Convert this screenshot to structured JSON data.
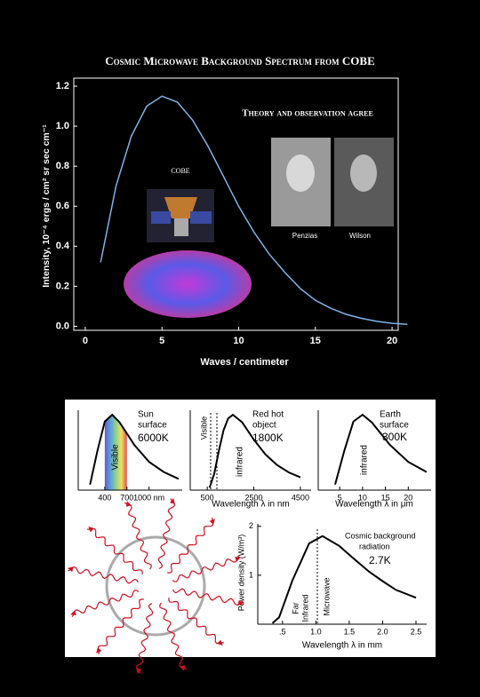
{
  "chart_data": [
    {
      "type": "line",
      "title": "Cosmic Microwave Background Spectrum from COBE",
      "subtitle": "Theory and observation agree",
      "y_label": "Intensity, 10⁻⁴ ergs / cm² sr sec cm⁻¹",
      "x_label": "Waves / centimeter",
      "annotations": [
        "COBE",
        "Penzias",
        "Wilson"
      ],
      "x": [
        1,
        2,
        3,
        4,
        5,
        6,
        7,
        8,
        9,
        10,
        11,
        12,
        13,
        14,
        15,
        16,
        17,
        18,
        19,
        20,
        21
      ],
      "values": [
        0.32,
        0.7,
        0.95,
        1.1,
        1.15,
        1.12,
        1.03,
        0.9,
        0.75,
        0.6,
        0.47,
        0.36,
        0.27,
        0.19,
        0.13,
        0.09,
        0.06,
        0.04,
        0.025,
        0.015,
        0.01
      ],
      "color": "#7fb2e5",
      "xlim": [
        -0.75,
        20.4
      ],
      "ylim": [
        -0.02,
        1.24
      ],
      "xticks": [
        0,
        5,
        10,
        15,
        20
      ],
      "yticks": [
        {
          "value": 0,
          "label": "0.0"
        },
        0.2,
        0.4,
        0.6,
        0.8,
        {
          "value": 1,
          "label": "1.0"
        },
        1.2
      ]
    },
    {
      "type": "line",
      "annotations": [
        "Sun",
        "surface",
        "6000K",
        "Visible"
      ],
      "x": [
        200,
        300,
        400,
        500,
        600,
        700,
        800,
        1000,
        1200,
        1400
      ],
      "values": [
        0.073,
        0.52,
        0.91,
        1.0,
        0.9,
        0.75,
        0.6,
        0.375,
        0.24,
        0.15
      ],
      "color": "#000000",
      "xlim": [
        40,
        1450
      ],
      "ylim": [
        0,
        1.06
      ],
      "xticks": [
        400,
        700,
        {
          "value": 1000,
          "label": "1000 nm"
        }
      ]
    },
    {
      "type": "line",
      "annotations": [
        "Red hot",
        "object",
        "1800K",
        "Visible",
        "infrared"
      ],
      "x_label": "Wavelength λ in nm",
      "x": [
        600,
        800,
        1000,
        1200,
        1400,
        1600,
        2000,
        2500,
        3000,
        3500,
        4000,
        4500
      ],
      "values": [
        0.032,
        0.215,
        0.52,
        0.795,
        0.951,
        1.0,
        0.9,
        0.671,
        0.474,
        0.333,
        0.236,
        0.17
      ],
      "color": "#000000",
      "xlim": [
        -230,
        4960
      ],
      "ylim": [
        0,
        1.06
      ],
      "xticks": [
        500,
        2500,
        4500
      ]
    },
    {
      "type": "line",
      "annotations": [
        "Earth",
        "surface",
        "300K",
        "infrared"
      ],
      "x_label": "Wavelength λ in μm",
      "x": [
        4,
        6,
        8,
        10,
        12,
        14,
        16,
        20,
        24
      ],
      "values": [
        0.073,
        0.52,
        0.91,
        1.0,
        0.9,
        0.75,
        0.6,
        0.375,
        0.24
      ],
      "color": "#000000",
      "xlim": [
        0.3,
        25
      ],
      "ylim": [
        0,
        1.06
      ],
      "xticks": [
        5,
        10,
        15,
        20
      ]
    },
    {
      "type": "line",
      "annotations": [
        "Cosmic background",
        "radiation",
        "2.7K",
        "Far",
        "Infrared",
        "Microwave"
      ],
      "y_label": "Power density (W/m³)",
      "x_label": "Wavelength λ in mm",
      "x": [
        0.35,
        0.45,
        0.65,
        0.9,
        1.1,
        1.35,
        1.55,
        1.8,
        2.0,
        2.2,
        2.5
      ],
      "values": [
        0.02,
        0.14,
        0.9,
        1.65,
        1.8,
        1.6,
        1.36,
        1.07,
        0.88,
        0.7,
        0.54
      ],
      "color": "#000000",
      "xlim": [
        0.13,
        2.66
      ],
      "ylim": [
        0,
        2.05
      ],
      "xticks": [
        {
          "value": 0.5,
          "label": ".5"
        },
        {
          "value": 1,
          "label": "1.0"
        },
        1.5,
        {
          "value": 2,
          "label": "2.0"
        },
        2.5
      ],
      "yticks": [
        1,
        2
      ]
    }
  ]
}
